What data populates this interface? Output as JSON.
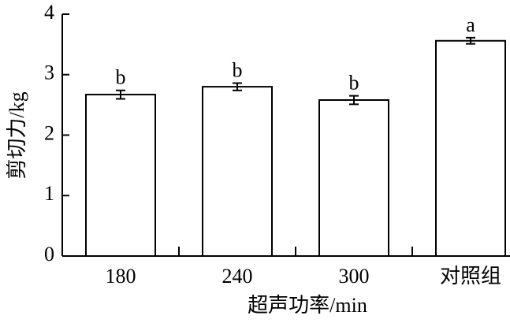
{
  "chart_data": {
    "type": "bar",
    "x_label": "超声功率/min",
    "y_label": "剪切力/kg",
    "categories": [
      "180",
      "240",
      "300",
      "对照组"
    ],
    "values": [
      2.67,
      2.8,
      2.58,
      3.56
    ],
    "errors": [
      0.07,
      0.06,
      0.07,
      0.05
    ],
    "significance": [
      "b",
      "b",
      "b",
      "a"
    ],
    "color": "#ffffff",
    "ylim": [
      0,
      4
    ],
    "yticks": [
      0,
      1,
      2,
      3,
      4
    ],
    "grid": false
  }
}
